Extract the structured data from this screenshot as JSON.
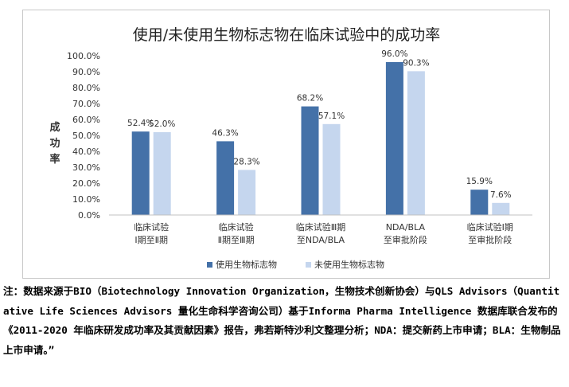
{
  "colors": {
    "series_used": "#4471a8",
    "series_unused": "#c5d6ee",
    "axis": "#c0c0c0",
    "text": "#333333"
  },
  "chart_data": {
    "type": "bar",
    "title": "使用/未使用生物标志物在临床试验中的成功率",
    "ylabel": "成功率",
    "xlabel": "",
    "ylim": [
      0,
      100
    ],
    "yticks": [
      "0.0%",
      "10.0%",
      "20.0%",
      "30.0%",
      "40.0%",
      "50.0%",
      "60.0%",
      "70.0%",
      "80.0%",
      "90.0%",
      "100.0%"
    ],
    "grid": false,
    "legend_position": "bottom",
    "categories": [
      [
        "临床试验",
        "Ⅰ期至Ⅱ期"
      ],
      [
        "临床试验",
        "Ⅱ期至Ⅲ期"
      ],
      [
        "临床试验Ⅲ期",
        "至NDA/BLA"
      ],
      [
        "NDA/BLA",
        "至审批阶段"
      ],
      [
        "临床试验Ⅰ期",
        "至审批阶段"
      ]
    ],
    "series": [
      {
        "name": "使用生物标志物",
        "values": [
          52.4,
          46.3,
          68.2,
          96.0,
          15.9
        ],
        "labels": [
          "52.4%",
          "46.3%",
          "68.2%",
          "96.0%",
          "15.9%"
        ]
      },
      {
        "name": "未使用生物标志物",
        "values": [
          52.0,
          28.3,
          57.1,
          90.3,
          7.6
        ],
        "labels": [
          "52.0%",
          "28.3%",
          "57.1%",
          "90.3%",
          "7.6%"
        ]
      }
    ]
  },
  "note": "注：数据来源于BIO（Biotechnology Innovation Organization，生物技术创新协会）与QLS Advisors（Quantitative Life Sciences Advisors 量化生命科学咨询公司）基于Informa Pharma Intelligence 数据库联合发布的《2011-2020 年临床研发成功率及其贡献因素》报告，弗若斯特沙利文整理分析；NDA：提交新药上市申请；BLA：生物制品上市申请。”"
}
